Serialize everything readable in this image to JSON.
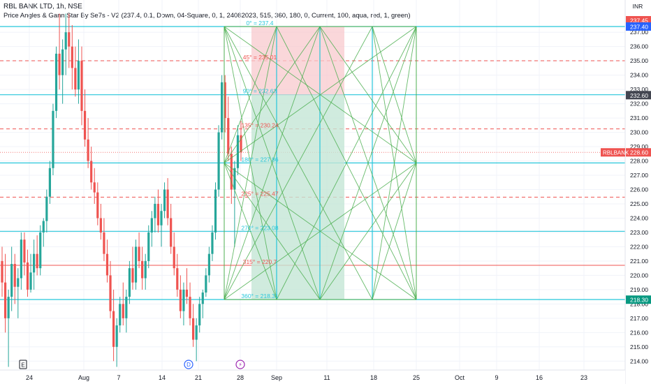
{
  "header": {
    "symbol_line": "RBL BANK LTD, 1h, NSE",
    "indicator_line": "Price Angles & Gann Star By Se7s - V2 (237.4, 0.1, Down, 04-Square, 0, 1, 24082023, 515, 360, 180, 0, Current, 100, aqua, red, 1, green)"
  },
  "currency": "INR",
  "colors": {
    "aqua": "#26c6da",
    "red": "#ef5350",
    "green": "#4caf50",
    "up_candle": "#26a69a",
    "down_candle": "#ef5350",
    "grid": "#f0f3fa",
    "axis_text": "#131722"
  },
  "chart_data": {
    "type": "candlestick",
    "title": "RBL BANK LTD, 1h, NSE",
    "y_axis": {
      "ylim": [
        213.4,
        238.3
      ],
      "ticks": [
        "214.00",
        "215.00",
        "216.00",
        "217.00",
        "218.00",
        "219.00",
        "220.00",
        "221.00",
        "222.00",
        "223.00",
        "224.00",
        "225.00",
        "226.00",
        "227.00",
        "228.00",
        "229.00",
        "230.00",
        "231.00",
        "232.00",
        "233.00",
        "234.00",
        "235.00",
        "236.00",
        "237.00"
      ]
    },
    "x_axis": {
      "ticks": [
        "24",
        "Aug",
        "7",
        "14",
        "21",
        "28",
        "Sep",
        "11",
        "18",
        "25",
        "Oct",
        "9",
        "16",
        "23"
      ]
    },
    "price_tags": [
      {
        "label": "237.45",
        "kind": "red"
      },
      {
        "label": "237.40",
        "kind": "blue"
      },
      {
        "label": "232.60",
        "kind": "dark"
      },
      {
        "name": "RBLBANK",
        "label": "228.60",
        "kind": "red"
      },
      {
        "label": "218.30",
        "kind": "green"
      }
    ],
    "gann_levels": [
      {
        "label": "0° = 237.4",
        "value": 237.4,
        "color": "aqua"
      },
      {
        "label": "45° = 235.01",
        "value": 235.01,
        "color": "red"
      },
      {
        "label": "90° = 232.63",
        "value": 232.63,
        "color": "aqua"
      },
      {
        "label": "135° = 230.24",
        "value": 230.24,
        "color": "red"
      },
      {
        "label": "180° = 227.86",
        "value": 227.86,
        "color": "aqua"
      },
      {
        "label": "225° = 225.47",
        "value": 225.47,
        "color": "red"
      },
      {
        "label": "270° = 223.08",
        "value": 223.08,
        "color": "aqua"
      },
      {
        "label": "315° = 220.7",
        "value": 220.7,
        "color": "red"
      },
      {
        "label": "360° = 218.31",
        "value": 218.31,
        "color": "aqua"
      }
    ],
    "current_price": 228.6,
    "event_markers": [
      "E",
      "D",
      "⚡"
    ],
    "candles": [
      [
        221.0,
        222.0,
        218.5,
        219.5
      ],
      [
        219.5,
        221.5,
        216.0,
        217.0
      ],
      [
        217.0,
        219.0,
        213.6,
        218.5
      ],
      [
        218.5,
        222.0,
        217.5,
        220.8
      ],
      [
        220.8,
        221.5,
        218.0,
        219.2
      ],
      [
        219.2,
        220.5,
        217.0,
        219.8
      ],
      [
        219.8,
        223.0,
        219.0,
        222.5
      ],
      [
        222.5,
        223.0,
        220.0,
        220.9
      ],
      [
        220.9,
        221.8,
        218.5,
        219.0
      ],
      [
        219.0,
        221.5,
        218.8,
        220.2
      ],
      [
        220.2,
        222.5,
        219.0,
        221.5
      ],
      [
        221.5,
        222.8,
        220.0,
        220.5
      ],
      [
        220.5,
        223.5,
        220.0,
        223.0
      ],
      [
        223.0,
        224.0,
        222.0,
        223.8
      ],
      [
        223.8,
        226.0,
        223.0,
        225.5
      ],
      [
        225.5,
        228.0,
        225.0,
        227.5
      ],
      [
        227.5,
        232.0,
        227.0,
        231.5
      ],
      [
        231.5,
        236.0,
        231.0,
        235.5
      ],
      [
        235.5,
        238.3,
        233.0,
        234.0
      ],
      [
        234.0,
        236.5,
        232.0,
        235.8
      ],
      [
        235.8,
        238.3,
        234.0,
        237.0
      ],
      [
        237.0,
        238.3,
        234.5,
        236.0
      ],
      [
        236.0,
        237.5,
        233.0,
        234.5
      ],
      [
        234.5,
        236.0,
        232.5,
        233.0
      ],
      [
        233.0,
        236.5,
        232.0,
        235.0
      ],
      [
        235.0,
        236.0,
        230.5,
        231.5
      ],
      [
        231.5,
        233.0,
        229.0,
        229.5
      ],
      [
        229.5,
        231.0,
        227.5,
        228.0
      ],
      [
        228.0,
        229.0,
        226.0,
        226.5
      ],
      [
        226.5,
        227.5,
        225.0,
        225.8
      ],
      [
        225.8,
        226.5,
        223.5,
        224.0
      ],
      [
        224.0,
        225.0,
        222.5,
        223.0
      ],
      [
        223.0,
        224.0,
        221.0,
        221.5
      ],
      [
        221.5,
        222.5,
        219.5,
        220.0
      ],
      [
        220.0,
        221.0,
        217.0,
        217.5
      ],
      [
        217.5,
        219.0,
        214.0,
        215.0
      ],
      [
        215.0,
        217.0,
        213.6,
        216.5
      ],
      [
        216.5,
        218.5,
        216.0,
        218.0
      ],
      [
        218.0,
        219.5,
        216.5,
        217.0
      ],
      [
        217.0,
        219.0,
        216.0,
        218.5
      ],
      [
        218.5,
        221.0,
        218.0,
        220.5
      ],
      [
        220.5,
        222.0,
        219.0,
        219.5
      ],
      [
        219.5,
        222.5,
        219.0,
        222.0
      ],
      [
        222.0,
        223.0,
        220.5,
        221.0
      ],
      [
        221.0,
        222.0,
        219.0,
        219.8
      ],
      [
        219.8,
        221.5,
        219.0,
        221.0
      ],
      [
        221.0,
        223.5,
        220.5,
        223.0
      ],
      [
        223.0,
        224.5,
        222.0,
        224.0
      ],
      [
        224.0,
        225.5,
        223.0,
        225.0
      ],
      [
        225.0,
        226.0,
        223.0,
        223.5
      ],
      [
        223.5,
        225.0,
        222.0,
        224.5
      ],
      [
        224.5,
        226.5,
        224.0,
        226.0
      ],
      [
        226.0,
        226.8,
        223.5,
        224.0
      ],
      [
        224.0,
        225.0,
        221.5,
        222.0
      ],
      [
        222.0,
        223.0,
        220.0,
        220.5
      ],
      [
        220.5,
        221.5,
        218.5,
        219.0
      ],
      [
        219.0,
        220.0,
        217.0,
        217.5
      ],
      [
        217.5,
        219.5,
        216.5,
        219.0
      ],
      [
        219.0,
        220.5,
        218.0,
        218.5
      ],
      [
        218.5,
        219.5,
        216.5,
        217.0
      ],
      [
        217.0,
        218.0,
        215.0,
        215.5
      ],
      [
        215.5,
        217.0,
        214.0,
        216.5
      ],
      [
        216.5,
        218.5,
        216.0,
        218.0
      ],
      [
        218.0,
        219.0,
        217.0,
        218.8
      ],
      [
        218.8,
        220.5,
        218.5,
        220.0
      ],
      [
        220.0,
        222.0,
        219.5,
        221.5
      ],
      [
        221.5,
        223.5,
        221.0,
        223.0
      ],
      [
        223.0,
        226.5,
        222.5,
        226.0
      ],
      [
        226.0,
        230.5,
        225.5,
        230.0
      ],
      [
        230.0,
        234.0,
        229.5,
        233.5
      ],
      [
        233.5,
        234.0,
        230.0,
        231.0
      ],
      [
        231.0,
        232.5,
        228.0,
        228.5
      ],
      [
        228.5,
        229.0,
        225.0,
        226.0
      ],
      [
        226.0,
        228.0,
        222.0,
        227.5
      ],
      [
        227.5,
        230.5,
        227.0,
        229.8
      ],
      [
        229.8,
        230.8,
        228.0,
        228.6
      ]
    ]
  }
}
